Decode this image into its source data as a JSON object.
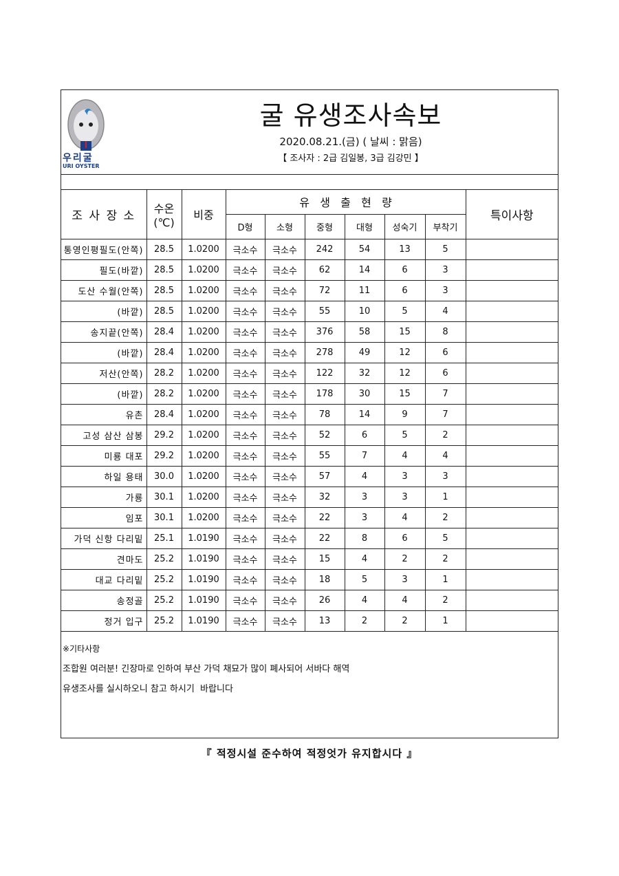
{
  "logo": {
    "text": "우리굴",
    "subtext": "URI OYSTER"
  },
  "title": "굴 유생조사속보",
  "date_line": "2020.08.21.(금) ( 날씨 : 맑음)",
  "surveyor_line": "【 조사자 : 2급 김일봉, 3급 김강민 】",
  "table": {
    "headers": {
      "place": "조 사 장 소",
      "temp": "수온\n(℃)",
      "temp_line1": "수온",
      "temp_line2": "(℃)",
      "gravity": "비중",
      "larvae_group": "유   생   출   현   량",
      "d_type": "D형",
      "small": "소형",
      "medium": "중형",
      "large": "대형",
      "mature": "성숙기",
      "attach": "부착기",
      "notes": "특이사항"
    },
    "rows": [
      [
        "통영인평필도(안쪽)",
        "28.5",
        "1.0200",
        "극소수",
        "극소수",
        "242",
        "54",
        "13",
        "5",
        ""
      ],
      [
        "필도(바깥)",
        "28.5",
        "1.0200",
        "극소수",
        "극소수",
        "62",
        "14",
        "6",
        "3",
        ""
      ],
      [
        "도산 수월(안쪽)",
        "28.5",
        "1.0200",
        "극소수",
        "극소수",
        "72",
        "11",
        "6",
        "3",
        ""
      ],
      [
        "(바깥)",
        "28.5",
        "1.0200",
        "극소수",
        "극소수",
        "55",
        "10",
        "5",
        "4",
        ""
      ],
      [
        "송지끝(안쪽)",
        "28.4",
        "1.0200",
        "극소수",
        "극소수",
        "376",
        "58",
        "15",
        "8",
        ""
      ],
      [
        "(바깥)",
        "28.4",
        "1.0200",
        "극소수",
        "극소수",
        "278",
        "49",
        "12",
        "6",
        ""
      ],
      [
        "저산(안쪽)",
        "28.2",
        "1.0200",
        "극소수",
        "극소수",
        "122",
        "32",
        "12",
        "6",
        ""
      ],
      [
        "(바깥)",
        "28.2",
        "1.0200",
        "극소수",
        "극소수",
        "178",
        "30",
        "15",
        "7",
        ""
      ],
      [
        "유촌",
        "28.4",
        "1.0200",
        "극소수",
        "극소수",
        "78",
        "14",
        "9",
        "7",
        ""
      ],
      [
        "고성 삼산 삼봉",
        "29.2",
        "1.0200",
        "극소수",
        "극소수",
        "52",
        "6",
        "5",
        "2",
        ""
      ],
      [
        "미룡 대포",
        "29.2",
        "1.0200",
        "극소수",
        "극소수",
        "55",
        "7",
        "4",
        "4",
        ""
      ],
      [
        "하일 용태",
        "30.0",
        "1.0200",
        "극소수",
        "극소수",
        "57",
        "4",
        "3",
        "3",
        ""
      ],
      [
        "가룡",
        "30.1",
        "1.0200",
        "극소수",
        "극소수",
        "32",
        "3",
        "3",
        "1",
        ""
      ],
      [
        "임포",
        "30.1",
        "1.0200",
        "극소수",
        "극소수",
        "22",
        "3",
        "4",
        "2",
        ""
      ],
      [
        "가덕 신항 다리밑",
        "25.1",
        "1.0190",
        "극소수",
        "극소수",
        "22",
        "8",
        "6",
        "5",
        ""
      ],
      [
        "견마도",
        "25.2",
        "1.0190",
        "극소수",
        "극소수",
        "15",
        "4",
        "2",
        "2",
        ""
      ],
      [
        "대교 다리밑",
        "25.2",
        "1.0190",
        "극소수",
        "극소수",
        "18",
        "5",
        "3",
        "1",
        ""
      ],
      [
        "송정골",
        "25.2",
        "1.0190",
        "극소수",
        "극소수",
        "26",
        "4",
        "4",
        "2",
        ""
      ],
      [
        "정거 입구",
        "25.2",
        "1.0190",
        "극소수",
        "극소수",
        "13",
        "2",
        "2",
        "1",
        ""
      ]
    ]
  },
  "notes": {
    "heading": "※기타사항",
    "lines": [
      "조합원 여러분! 긴장마로 인하여 부산 가덕 채묘가 많이 폐사되어 서바다 해역",
      "유생조사를 실시하오니 참고 하시기  바랍니다"
    ]
  },
  "footer": "『 적정시설 준수하여 적정엇가 유지합시다 』"
}
